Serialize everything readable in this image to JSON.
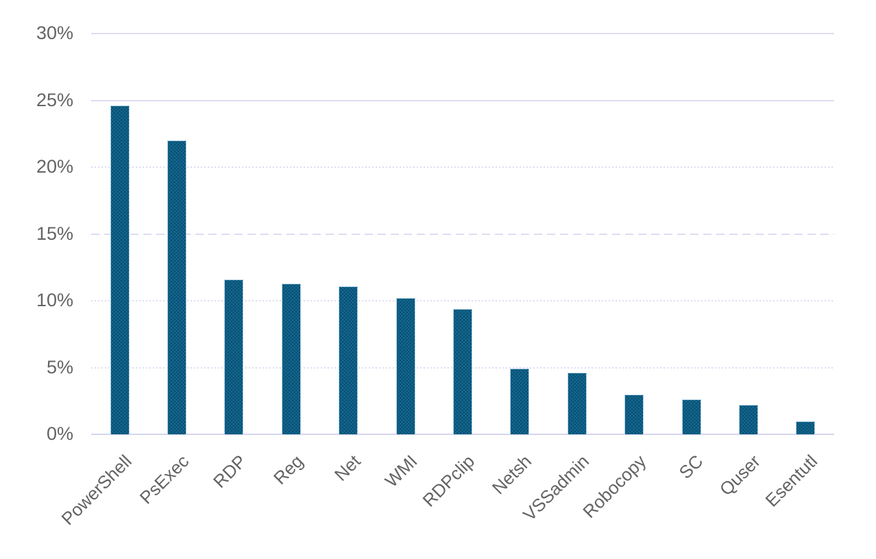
{
  "chart_data": {
    "type": "bar",
    "title": "",
    "xlabel": "",
    "ylabel": "",
    "categories": [
      "PowerShell",
      "PsExec",
      "RDP",
      "Reg",
      "Net",
      "WMI",
      "RDPclip",
      "Netsh",
      "VSSadmin",
      "Robocopy",
      "SC",
      "Quser",
      "Esentutl"
    ],
    "values": [
      24.6,
      22.0,
      11.6,
      11.3,
      11.1,
      10.2,
      9.4,
      4.9,
      4.6,
      3.0,
      2.6,
      2.2,
      1.0
    ],
    "value_unit": "%",
    "ylim": [
      0,
      30
    ],
    "ytick_step": 5,
    "yticks": [
      {
        "label": "30%",
        "value": 30,
        "line_style": "solid"
      },
      {
        "label": "25%",
        "value": 25,
        "line_style": "solid"
      },
      {
        "label": "20%",
        "value": 20,
        "line_style": "dotted"
      },
      {
        "label": "15%",
        "value": 15,
        "line_style": "dashed"
      },
      {
        "label": "10%",
        "value": 10,
        "line_style": "dotted"
      },
      {
        "label": "5%",
        "value": 5,
        "line_style": "dotted"
      },
      {
        "label": "0%",
        "value": 0,
        "line_style": "axis"
      }
    ],
    "grid": "horizontal",
    "legend": "none",
    "x_tick_rotation_deg": 45,
    "colors": {
      "background": "#ffffff",
      "bar_fill": "#11678f",
      "bar_dot_texture": "#0a4768",
      "bar_border": "#aed0e5",
      "gridline": "#dcdcf2",
      "axis_line": "#d5d5ef",
      "tick_label": "#646464"
    }
  }
}
